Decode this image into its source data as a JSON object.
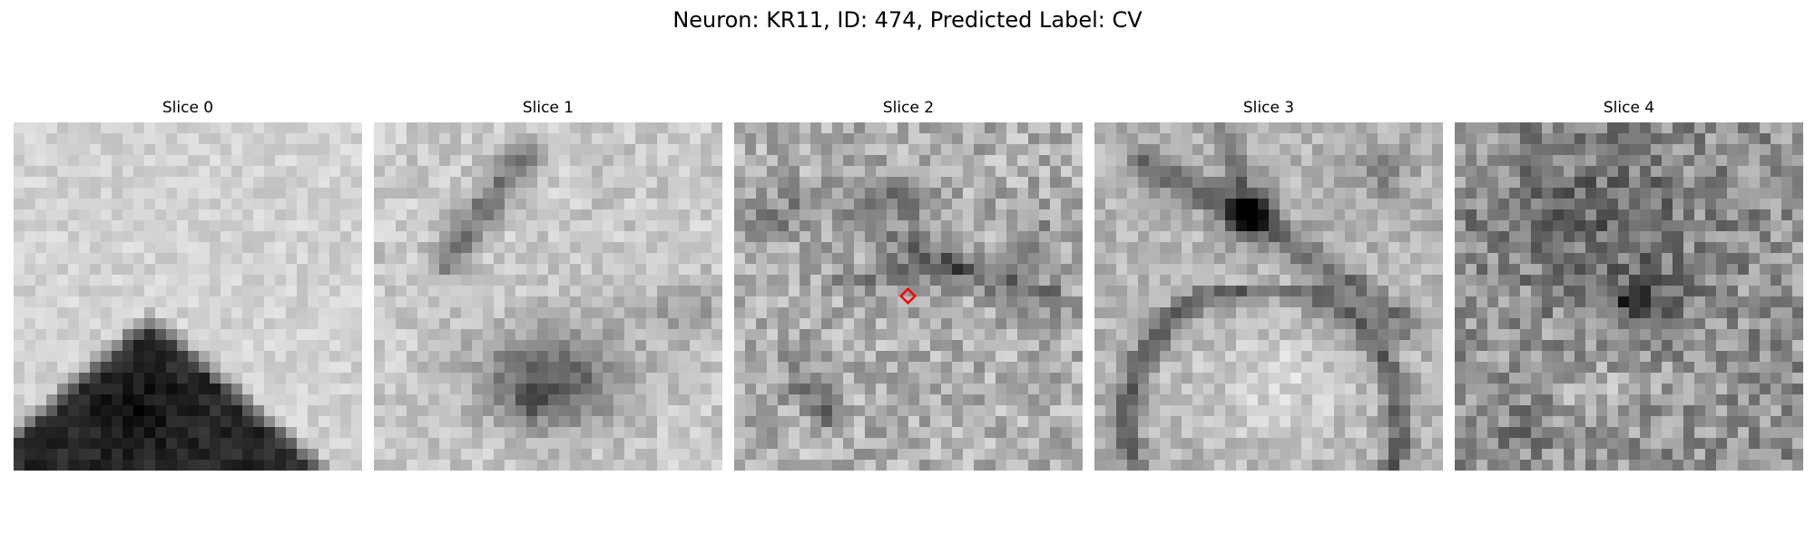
{
  "figure": {
    "title": "Neuron: KR11, ID: 474, Predicted Label: CV"
  },
  "marker_color": "#ff0000",
  "panels": [
    {
      "title": "Slice 0",
      "pattern": "dark-mound"
    },
    {
      "title": "Slice 1",
      "pattern": "dark-blob-diagonal"
    },
    {
      "title": "Slice 2",
      "pattern": "noisy-membranes"
    },
    {
      "title": "Slice 3",
      "pattern": "arch-membrane"
    },
    {
      "title": "Slice 4",
      "pattern": "dense-noise"
    }
  ]
}
